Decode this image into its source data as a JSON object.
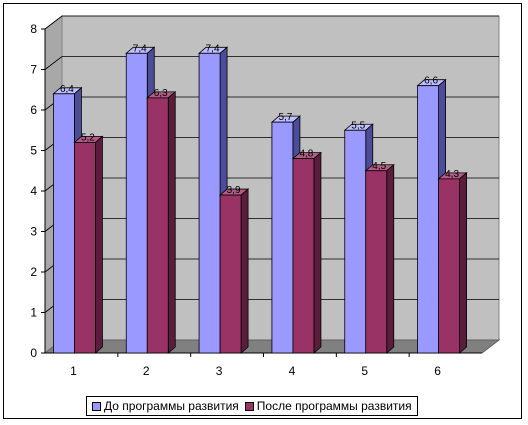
{
  "chart_data": {
    "type": "bar",
    "categories": [
      "1",
      "2",
      "3",
      "4",
      "5",
      "6"
    ],
    "series": [
      {
        "name": "До программы развития",
        "values": [
          6.4,
          7.4,
          7.4,
          5.7,
          5.5,
          6.6
        ],
        "labels": [
          "6,4",
          "7,4",
          "7,4",
          "5,7",
          "5,5",
          "6,6"
        ]
      },
      {
        "name": "После программы развития",
        "values": [
          5.2,
          6.3,
          3.9,
          4.8,
          4.5,
          4.3
        ],
        "labels": [
          "5,2",
          "6,3",
          "3,9",
          "4,8",
          "4,5",
          "4,3"
        ]
      }
    ],
    "ylim": [
      0,
      8
    ],
    "yticks": [
      "0",
      "1",
      "2",
      "3",
      "4",
      "5",
      "6",
      "7",
      "8"
    ],
    "grid": true,
    "legend_position": "bottom",
    "colors": {
      "series1_front": "#9999ff",
      "series1_side": "#4c4c99",
      "series1_top": "#bfbfff",
      "series2_front": "#993366",
      "series2_side": "#5a1e3c",
      "series2_top": "#b35c85",
      "wall": "#c0c0c0",
      "floor": "#808080"
    }
  }
}
